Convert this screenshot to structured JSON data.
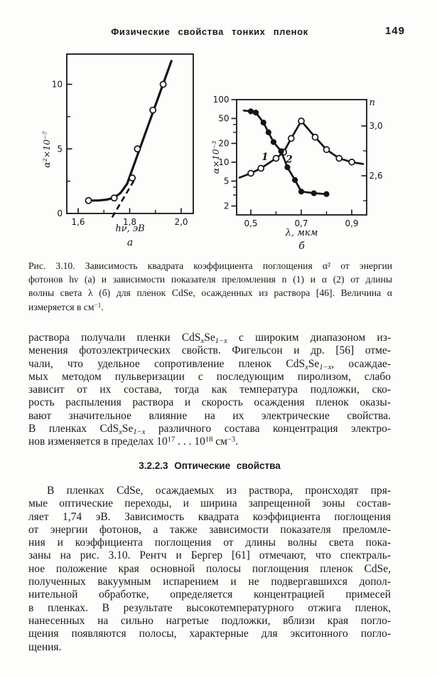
{
  "header": {
    "title": "Физические свойства тонких пленок",
    "page_number": "149"
  },
  "figure": {
    "caption_lines": [
      "Рис. 3.10. Зависимость квадрата коэффициента поглощения α² от энергии",
      "фотонов hν (а) и зависимости показателя преломления n (1) и α (2) от длины",
      "волны света λ (б) для пленок CdSe, осажденных из раствора [46]. Величина α",
      "измеряется в см^−1^."
    ]
  },
  "sections": {
    "para1_lines": [
      "раствора получали пленки CdS~x~Se~1−x~ с широким диапазоном из-",
      "менения фотоэлектрических свойств. Фигельсон и др. [56] отме-",
      "чали, что удельное сопротивление пленок CdS~x~Se~1−x~, осаждае-",
      "мых методом пульверизации с последующим пиролизом, слабо",
      "зависит от их состава, тогда как температура подложки, ско-",
      "рость распыления раствора и скорость осаждения пленок оказы-",
      "вают значительное влияние на их электрические свойства.",
      "В пленках CdS~x~Se~1−x~ различного состава концентрация электро-",
      "нов изменяется в пределах 10^17^ . . . 10^18^ см^−3^."
    ],
    "heading": "3.2.2.3 Оптические свойства",
    "para2_lines": [
      "В пленках CdSe, осаждаемых из раствора, происходят пря-",
      "мые оптические переходы, и ширина запрещенной зоны состав-",
      "ляет 1,74 эВ. Зависимость квадрата коэффициента поглощения",
      "от энергии фотонов, а также зависимости показателя преломле-",
      "ния и коэффициента поглощения от длины волны света пока-",
      "заны на рис. 3.10. Рентч и Бергер [61] отмечают, что спектраль-",
      "ное положение края основной полосы поглощения пленок CdSe,",
      "полученных вакуумным испарением и не подвергавшихся допол-",
      "нительной обработке, определяется концентрацией примесей",
      "в пленках. В результате высокотемпературного отжига пленок,",
      "нанесенных на сильно нагретые подложки, вблизи края погло-",
      "щения появляются полосы, характерные для экситонного погло-",
      "щения."
    ]
  },
  "colors": {
    "ink": "#151515",
    "paper": "#fdfdfb"
  },
  "chart_data": [
    {
      "type": "scatter",
      "panel_label": "а",
      "title": "",
      "xlabel": "hν, эВ",
      "ylabel": "α²×10⁻⁷",
      "xlim": [
        1.556,
        2.047
      ],
      "ylim": [
        0,
        12.35
      ],
      "grid": false,
      "x_ticks": {
        "major": [
          1.6,
          1.8,
          2.0
        ],
        "minor": [
          1.7,
          1.9
        ],
        "labels": [
          "1,6",
          "1,8",
          "2,0"
        ]
      },
      "y_ticks": {
        "major": [
          0,
          5,
          10
        ],
        "minor": [
          2.5,
          7.5
        ],
        "labels": [
          "0",
          "5",
          "10"
        ]
      },
      "points": [
        [
          1.64,
          1.0
        ],
        [
          1.74,
          1.2
        ],
        [
          1.81,
          2.75
        ],
        [
          1.83,
          5.0
        ],
        [
          1.89,
          8.0
        ],
        [
          1.93,
          10.0
        ]
      ],
      "marker": "open",
      "solid_line": [
        [
          1.637,
          1.0
        ],
        [
          1.675,
          1.0
        ],
        [
          1.71,
          1.07
        ],
        [
          1.74,
          1.22
        ],
        [
          1.765,
          1.6
        ],
        [
          1.79,
          2.3
        ],
        [
          1.962,
          11.8
        ]
      ],
      "dashed_line": [
        [
          1.732,
          -0.3
        ],
        [
          1.824,
          2.8
        ]
      ]
    },
    {
      "type": "scatter",
      "panel_label": "б",
      "title": "",
      "xlabel": "λ, мкм",
      "ylabel_left": "α×10⁻³",
      "ylabel_right": "n",
      "xlim": [
        0.444,
        0.958
      ],
      "x_ticks": {
        "major": [
          0.5,
          0.7,
          0.9
        ],
        "minor": [
          0.6,
          0.8
        ],
        "labels": [
          "0,5",
          "0,7",
          "0,9"
        ]
      },
      "alpha_axis": {
        "scale": "log",
        "major": [
          100,
          50,
          20,
          10,
          5,
          2
        ],
        "minor": [
          40,
          30,
          4,
          3
        ],
        "labels": [
          "100",
          "50",
          "20",
          "10",
          "5",
          "2"
        ],
        "ylim": [
          1.44,
          100
        ]
      },
      "n_axis": {
        "major": [
          3.0,
          2.6
        ],
        "minor": [
          2.8,
          2.4
        ],
        "labels": [
          "3,0",
          "2,6"
        ],
        "ylim": [
          2.29,
          3.21
        ]
      },
      "series": [
        {
          "name": "1",
          "quantity": "n",
          "axis": "n",
          "marker": "open",
          "points": [
            [
              0.5,
              2.62
            ],
            [
              0.54,
              2.66
            ],
            [
              0.6,
              2.74
            ],
            [
              0.63,
              2.79
            ],
            [
              0.66,
              2.9
            ],
            [
              0.7,
              3.04
            ],
            [
              0.755,
              2.91
            ],
            [
              0.8,
              2.81
            ],
            [
              0.85,
              2.74
            ],
            [
              0.9,
              2.71
            ]
          ],
          "line_pre": [
            [
              0.455,
              2.585
            ]
          ],
          "line_post": [
            [
              0.945,
              2.695
            ]
          ]
        },
        {
          "name": "2",
          "quantity": "α",
          "axis": "alpha",
          "marker": "filled",
          "points": [
            [
              0.5,
              65
            ],
            [
              0.52,
              62
            ],
            [
              0.55,
              43
            ],
            [
              0.57,
              30
            ],
            [
              0.59,
              21
            ],
            [
              0.62,
              15
            ],
            [
              0.645,
              8.3
            ],
            [
              0.675,
              5.2
            ],
            [
              0.7,
              3.4
            ],
            [
              0.75,
              3.2
            ],
            [
              0.8,
              3.1
            ]
          ],
          "line_pre": [
            [
              0.472,
              67
            ]
          ],
          "line_post": []
        }
      ],
      "curve_labels": [
        {
          "text": "1",
          "x": 0.556,
          "n_y": 2.725
        },
        {
          "text": "2",
          "x": 0.652,
          "n_y": 2.705
        }
      ]
    }
  ]
}
